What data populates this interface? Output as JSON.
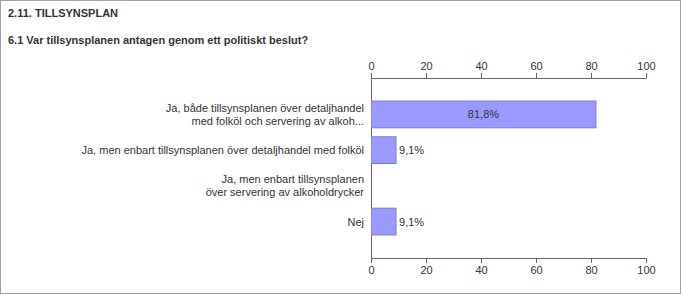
{
  "chart_data": {
    "type": "bar",
    "orientation": "horizontal",
    "section_title": "2.11. TILLSYNSPLAN",
    "title": "6.1 Var tillsynsplanen antagen genom ett politiskt beslut?",
    "categories": [
      "Ja, både tillsynsplanen över detaljhandel\nmed folköl och servering av alkoh...",
      "Ja, men enbart tillsynsplanen över detaljhandel med folköl",
      "Ja, men enbart tillsynsplanen\növer servering av alkoholdrycker",
      "Nej"
    ],
    "values": [
      81.8,
      9.1,
      0,
      9.1
    ],
    "value_labels": [
      "81,8%",
      "9,1%",
      null,
      "9,1%"
    ],
    "data_labels": true,
    "color": "#9999ff",
    "xlim": [
      0,
      100
    ],
    "xticks": [
      0,
      20,
      40,
      60,
      80,
      100
    ],
    "grid": false
  }
}
